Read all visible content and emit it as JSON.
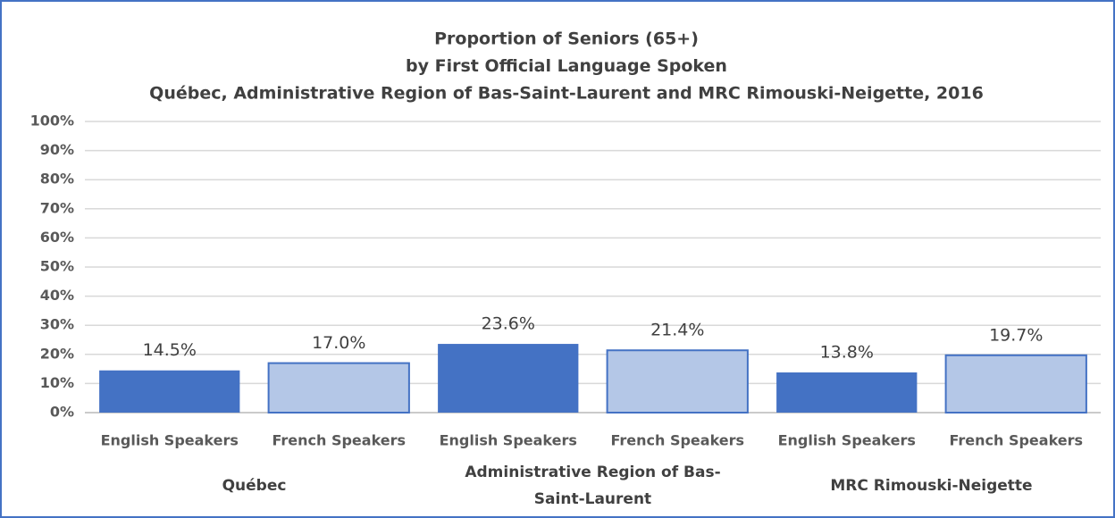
{
  "chart_data": {
    "type": "bar",
    "title": [
      "Proportion of Seniors (65+)",
      "by First Official Language Spoken",
      "Québec, Administrative Region of Bas-Saint-Laurent and MRC Rimouski-Neigette, 2016"
    ],
    "categories": [
      "English Speakers",
      "French Speakers",
      "English Speakers",
      "French Speakers",
      "English Speakers",
      "French Speakers"
    ],
    "groups": [
      "Québec",
      "Administrative Region of Bas-Saint-Laurent",
      "MRC Rimouski-Neigette"
    ],
    "values": [
      14.5,
      17.0,
      23.6,
      21.4,
      13.8,
      19.7
    ],
    "value_labels": [
      "14.5%",
      "17.0%",
      "23.6%",
      "21.4%",
      "13.8%",
      "19.7%"
    ],
    "colors": [
      "#4472c4",
      "#b4c7e7",
      "#4472c4",
      "#b4c7e7",
      "#4472c4",
      "#b4c7e7"
    ],
    "edge_color": "#4472c4",
    "ylim": [
      0,
      100
    ],
    "yticks": [
      {
        "value": 0,
        "label": "0%"
      },
      {
        "value": 10,
        "label": "10%"
      },
      {
        "value": 20,
        "label": "20%"
      },
      {
        "value": 30,
        "label": "30%"
      },
      {
        "value": 40,
        "label": "40%"
      },
      {
        "value": 50,
        "label": "50%"
      },
      {
        "value": 60,
        "label": "60%"
      },
      {
        "value": 70,
        "label": "70%"
      },
      {
        "value": 80,
        "label": "80%"
      },
      {
        "value": 90,
        "label": "90%"
      },
      {
        "value": 100,
        "label": "100%"
      }
    ],
    "grid": true
  }
}
